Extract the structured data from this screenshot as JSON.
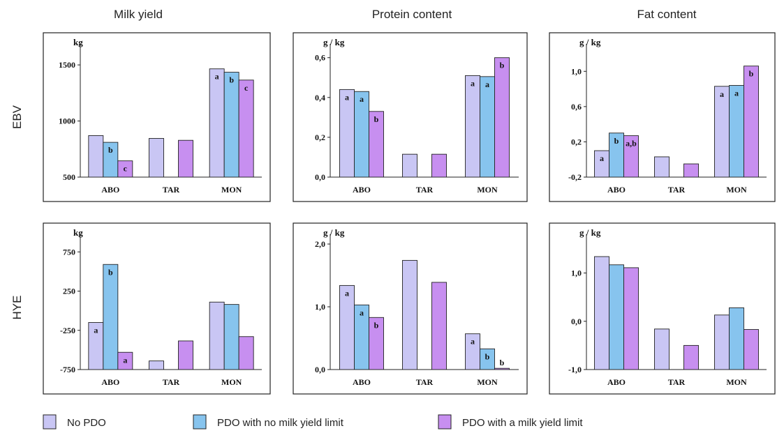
{
  "colors": {
    "No PDO": "#c9c6f4",
    "PDO with no milk yield limit": "#87c4ee",
    "PDO with a milk yield limit": "#c78ff0",
    "frame": "#222222"
  },
  "column_titles": [
    "Milk yield",
    "Protein content",
    "Fat content"
  ],
  "row_titles": [
    "EBV",
    "HYE"
  ],
  "legend": {
    "position": "bottom",
    "items": [
      "No PDO",
      "PDO with no milk yield limit",
      "PDO with a milk yield limit"
    ]
  },
  "chart_data": [
    {
      "type": "bar",
      "row": "EBV",
      "column": "Milk yield",
      "ylabel": "kg",
      "ylim": [
        500,
        1600
      ],
      "yticks": [
        "500",
        "1000",
        "1500"
      ],
      "categories": [
        "ABO",
        "TAR",
        "MON"
      ],
      "series": [
        {
          "name": "No PDO",
          "values": [
            870,
            845,
            1465
          ],
          "labels": [
            "",
            "",
            "a"
          ]
        },
        {
          "name": "PDO with no milk yield limit",
          "values": [
            810,
            null,
            1435
          ],
          "labels": [
            "b",
            "",
            "b"
          ]
        },
        {
          "name": "PDO with a milk yield limit",
          "values": [
            645,
            828,
            1365
          ],
          "labels": [
            "c",
            "",
            "c"
          ]
        }
      ]
    },
    {
      "type": "bar",
      "row": "EBV",
      "column": "Protein content",
      "ylabel": "g / kg",
      "ylim": [
        0,
        0.62
      ],
      "yticks": [
        "0,0",
        "0,2",
        "0,4",
        "0,6"
      ],
      "categories": [
        "ABO",
        "TAR",
        "MON"
      ],
      "series": [
        {
          "name": "No PDO",
          "values": [
            0.44,
            0.115,
            0.51
          ],
          "labels": [
            "a",
            "",
            "a"
          ]
        },
        {
          "name": "PDO with no milk yield limit",
          "values": [
            0.43,
            null,
            0.505
          ],
          "labels": [
            "a",
            "",
            "a"
          ]
        },
        {
          "name": "PDO with a milk yield limit",
          "values": [
            0.33,
            0.115,
            0.6
          ],
          "labels": [
            "b",
            "",
            "b"
          ]
        }
      ]
    },
    {
      "type": "bar",
      "row": "EBV",
      "column": "Fat content",
      "ylabel": "g / kg",
      "ylim": [
        -0.2,
        1.2
      ],
      "yticks": [
        "-0,2",
        "0,2",
        "0,6",
        "1,0"
      ],
      "categories": [
        "ABO",
        "TAR",
        "MON"
      ],
      "series": [
        {
          "name": "No PDO",
          "values": [
            0.1,
            0.03,
            0.83
          ],
          "labels": [
            "a",
            "",
            "a"
          ]
        },
        {
          "name": "PDO with no milk yield limit",
          "values": [
            0.3,
            null,
            0.84
          ],
          "labels": [
            "b",
            "",
            "a"
          ]
        },
        {
          "name": "PDO with a milk yield limit",
          "values": [
            0.27,
            -0.05,
            1.06
          ],
          "labels": [
            "a,b",
            "",
            "b"
          ]
        }
      ]
    },
    {
      "type": "bar",
      "row": "HYE",
      "column": "Milk yield",
      "ylabel": "kg",
      "ylim": [
        -750,
        850
      ],
      "yticks": [
        "-750",
        "-250",
        "250",
        "750"
      ],
      "categories": [
        "ABO",
        "TAR",
        "MON"
      ],
      "series": [
        {
          "name": "No PDO",
          "values": [
            -150,
            -640,
            110
          ],
          "labels": [
            "a",
            "",
            ""
          ]
        },
        {
          "name": "PDO with no milk yield limit",
          "values": [
            590,
            null,
            80
          ],
          "labels": [
            "b",
            "",
            ""
          ]
        },
        {
          "name": "PDO with a milk yield limit",
          "values": [
            -530,
            -385,
            -330
          ],
          "labels": [
            "a",
            "",
            ""
          ]
        }
      ]
    },
    {
      "type": "bar",
      "row": "HYE",
      "column": "Protein content",
      "ylabel": "g / kg",
      "ylim": [
        0,
        2.0
      ],
      "yticks": [
        "0,0",
        "1,0",
        "2,0"
      ],
      "categories": [
        "ABO",
        "TAR",
        "MON"
      ],
      "series": [
        {
          "name": "No PDO",
          "values": [
            1.34,
            1.74,
            0.57
          ],
          "labels": [
            "a",
            "",
            "a"
          ]
        },
        {
          "name": "PDO with no milk yield limit",
          "values": [
            1.03,
            null,
            0.33
          ],
          "labels": [
            "a",
            "",
            "b"
          ]
        },
        {
          "name": "PDO with a milk yield limit",
          "values": [
            0.83,
            1.39,
            0.02
          ],
          "labels": [
            "b",
            "",
            "b"
          ]
        }
      ]
    },
    {
      "type": "bar",
      "row": "HYE",
      "column": "Fat content",
      "ylabel": "g / kg",
      "ylim": [
        -1.0,
        1.6
      ],
      "yticks": [
        "-1,0",
        "0,0",
        "1,0"
      ],
      "categories": [
        "ABO",
        "TAR",
        "MON"
      ],
      "series": [
        {
          "name": "No PDO",
          "values": [
            1.34,
            -0.16,
            0.13
          ],
          "labels": [
            "",
            "",
            ""
          ]
        },
        {
          "name": "PDO with no milk yield limit",
          "values": [
            1.17,
            null,
            0.28
          ],
          "labels": [
            "",
            "",
            ""
          ]
        },
        {
          "name": "PDO with a milk yield limit",
          "values": [
            1.11,
            -0.5,
            -0.17
          ],
          "labels": [
            "",
            "",
            ""
          ]
        }
      ]
    }
  ]
}
